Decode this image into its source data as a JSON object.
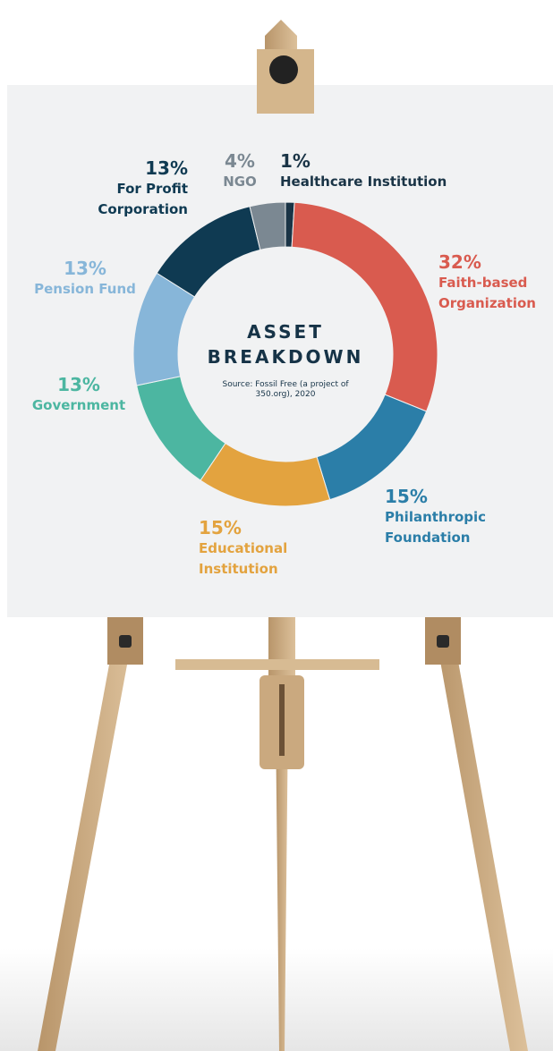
{
  "chart_data": {
    "type": "pie",
    "title": "ASSET BREAKDOWN",
    "subtitle": "Source: Fossil Free (a project of 350.org), 2020",
    "categories": [
      "Healthcare Institution",
      "Faith-based Organization",
      "Philanthropic Foundation",
      "Educational Institution",
      "Government",
      "Pension Fund",
      "For Profit Corporation",
      "NGO"
    ],
    "values": [
      1,
      32,
      15,
      15,
      13,
      13,
      13,
      4
    ],
    "value_labels": [
      "1%",
      "32%",
      "15%",
      "15%",
      "13%",
      "13%",
      "13%",
      "4%"
    ],
    "colors": [
      "#1a3446",
      "#d95b4f",
      "#2b7ea8",
      "#e3a33f",
      "#4cb6a1",
      "#87b6d9",
      "#0f3a52",
      "#7b8892"
    ]
  }
}
